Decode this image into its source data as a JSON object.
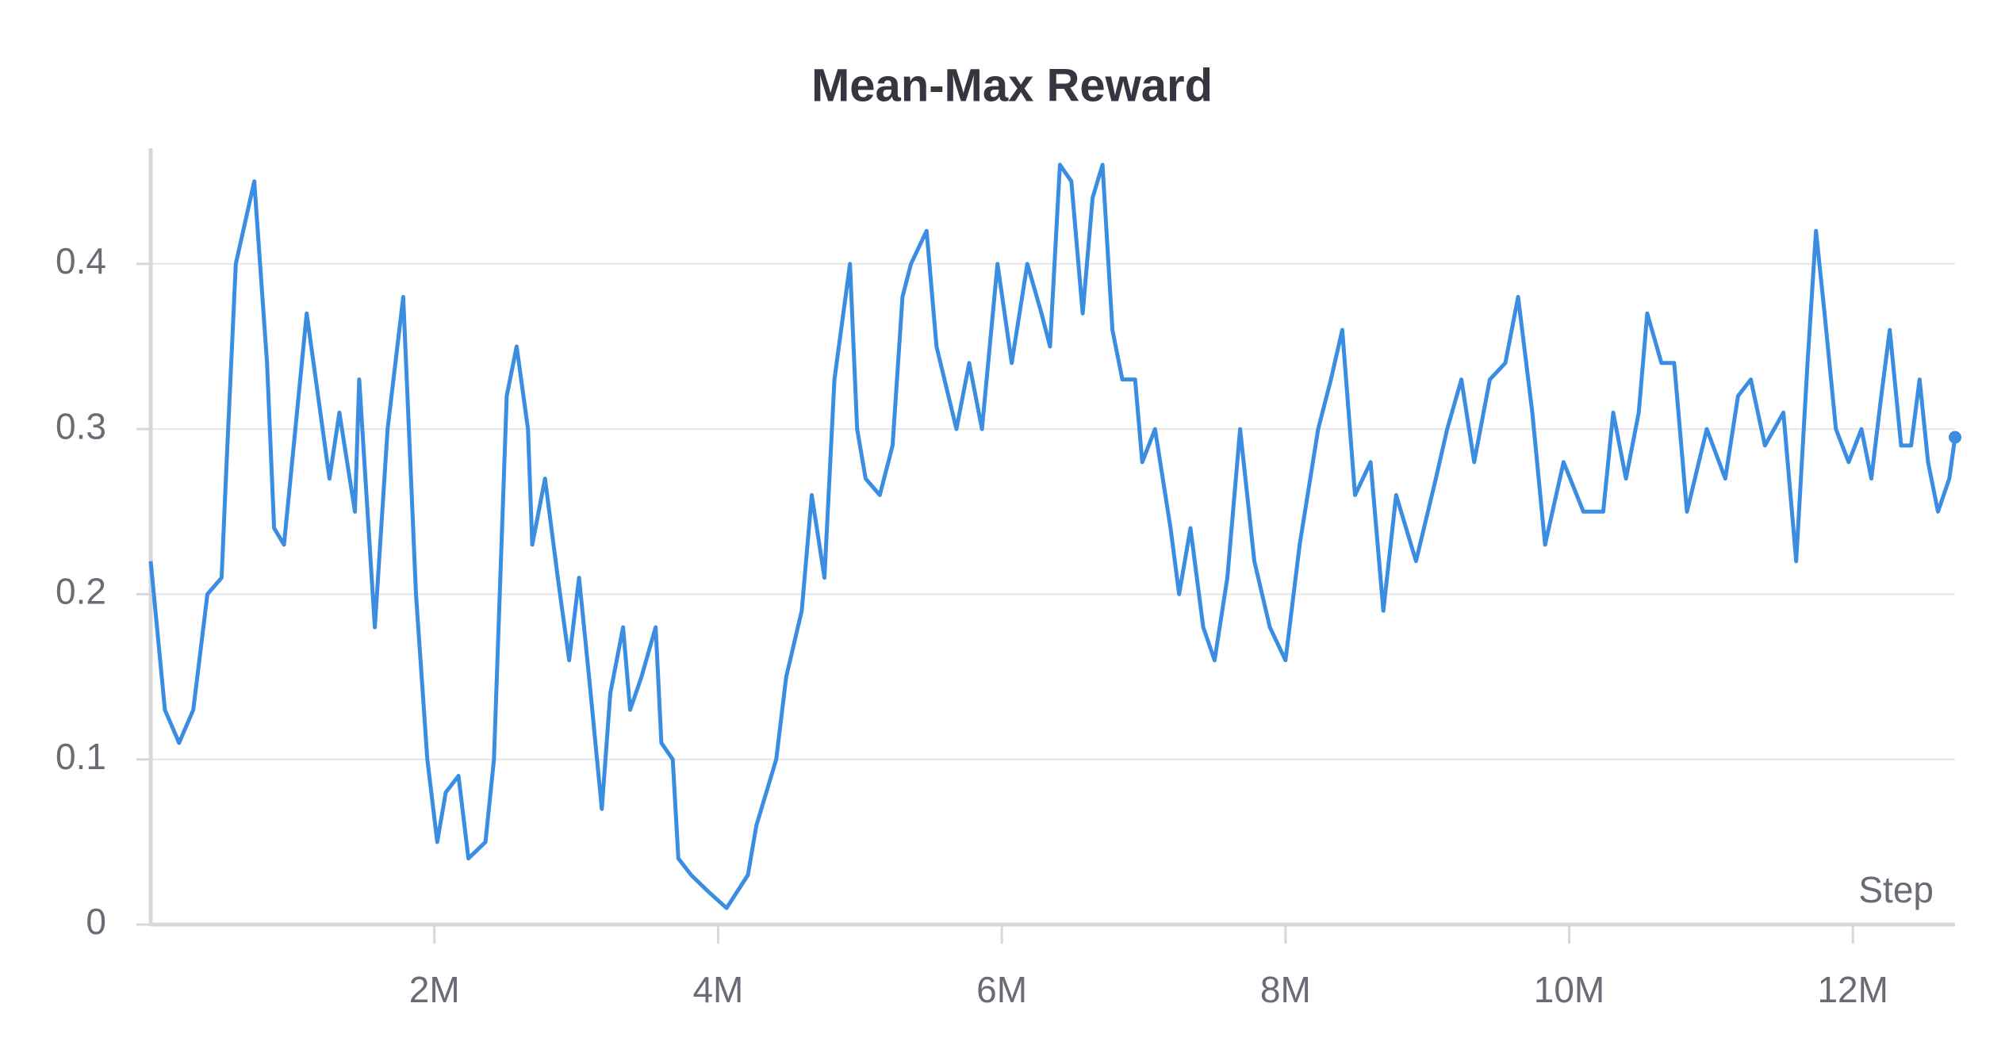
{
  "chart_data": {
    "type": "line",
    "title": "Mean-Max Reward",
    "x_label": "Step",
    "color": "#3a8de0",
    "x": [
      0,
      100000,
      200000,
      300000,
      400000,
      500000,
      530000,
      600000,
      730000,
      820000,
      870000,
      940000,
      1100000,
      1260000,
      1330000,
      1440000,
      1470000,
      1580000,
      1670000,
      1780000,
      1870000,
      1950000,
      2020000,
      2080000,
      2170000,
      2240000,
      2360000,
      2420000,
      2510000,
      2580000,
      2660000,
      2690000,
      2780000,
      2870000,
      2950000,
      3020000,
      3090000,
      3180000,
      3240000,
      3330000,
      3380000,
      3460000,
      3560000,
      3600000,
      3680000,
      3720000,
      3810000,
      3930000,
      4060000,
      4210000,
      4270000,
      4410000,
      4480000,
      4590000,
      4660000,
      4750000,
      4820000,
      4930000,
      4980000,
      5040000,
      5140000,
      5230000,
      5300000,
      5360000,
      5470000,
      5540000,
      5680000,
      5770000,
      5860000,
      5970000,
      6070000,
      6180000,
      6280000,
      6340000,
      6410000,
      6490000,
      6570000,
      6640000,
      6710000,
      6780000,
      6850000,
      6940000,
      6990000,
      7080000,
      7190000,
      7250000,
      7330000,
      7420000,
      7500000,
      7590000,
      7680000,
      7780000,
      7890000,
      8000000,
      8100000,
      8230000,
      8320000,
      8400000,
      8490000,
      8600000,
      8690000,
      8780000,
      8920000,
      9060000,
      9140000,
      9240000,
      9330000,
      9440000,
      9550000,
      9640000,
      9740000,
      9830000,
      9960000,
      10100000,
      10240000,
      10310000,
      10400000,
      10490000,
      10550000,
      10650000,
      10740000,
      10830000,
      10970000,
      11100000,
      11190000,
      11280000,
      11380000,
      11510000,
      11600000,
      11680000,
      11740000,
      11800000,
      11880000,
      11970000,
      12060000,
      12130000,
      12200000,
      12260000,
      12340000,
      12410000,
      12470000,
      12530000,
      12600000,
      12680000,
      12720000
    ],
    "values": [
      0.22,
      0.13,
      0.11,
      0.13,
      0.2,
      0.21,
      0.27,
      0.4,
      0.45,
      0.34,
      0.24,
      0.23,
      0.37,
      0.27,
      0.31,
      0.25,
      0.33,
      0.18,
      0.3,
      0.38,
      0.2,
      0.1,
      0.05,
      0.08,
      0.09,
      0.04,
      0.05,
      0.1,
      0.32,
      0.35,
      0.3,
      0.23,
      0.27,
      0.21,
      0.16,
      0.21,
      0.15,
      0.07,
      0.14,
      0.18,
      0.13,
      0.15,
      0.18,
      0.11,
      0.1,
      0.04,
      0.03,
      0.02,
      0.01,
      0.03,
      0.06,
      0.1,
      0.15,
      0.19,
      0.26,
      0.21,
      0.33,
      0.4,
      0.3,
      0.27,
      0.26,
      0.29,
      0.38,
      0.4,
      0.42,
      0.35,
      0.3,
      0.34,
      0.3,
      0.4,
      0.34,
      0.4,
      0.37,
      0.35,
      0.46,
      0.45,
      0.37,
      0.44,
      0.46,
      0.36,
      0.33,
      0.33,
      0.28,
      0.3,
      0.24,
      0.2,
      0.24,
      0.18,
      0.16,
      0.21,
      0.3,
      0.22,
      0.18,
      0.16,
      0.23,
      0.3,
      0.33,
      0.36,
      0.26,
      0.28,
      0.19,
      0.26,
      0.22,
      0.27,
      0.3,
      0.33,
      0.28,
      0.33,
      0.34,
      0.38,
      0.31,
      0.23,
      0.28,
      0.25,
      0.25,
      0.31,
      0.27,
      0.31,
      0.37,
      0.34,
      0.34,
      0.25,
      0.3,
      0.27,
      0.32,
      0.33,
      0.29,
      0.31,
      0.22,
      0.34,
      0.42,
      0.37,
      0.3,
      0.28,
      0.3,
      0.27,
      0.32,
      0.36,
      0.29,
      0.29,
      0.33,
      0.28,
      0.25,
      0.27,
      0.295
    ],
    "xlim": [
      0,
      12720000
    ],
    "ylim": [
      0,
      0.47
    ],
    "xticks": [
      {
        "value": 2000000,
        "label": "2M"
      },
      {
        "value": 4000000,
        "label": "4M"
      },
      {
        "value": 6000000,
        "label": "6M"
      },
      {
        "value": 8000000,
        "label": "8M"
      },
      {
        "value": 10000000,
        "label": "10M"
      },
      {
        "value": 12000000,
        "label": "12M"
      }
    ],
    "yticks": [
      0,
      0.1,
      0.2,
      0.3,
      0.4
    ],
    "grid": true
  }
}
